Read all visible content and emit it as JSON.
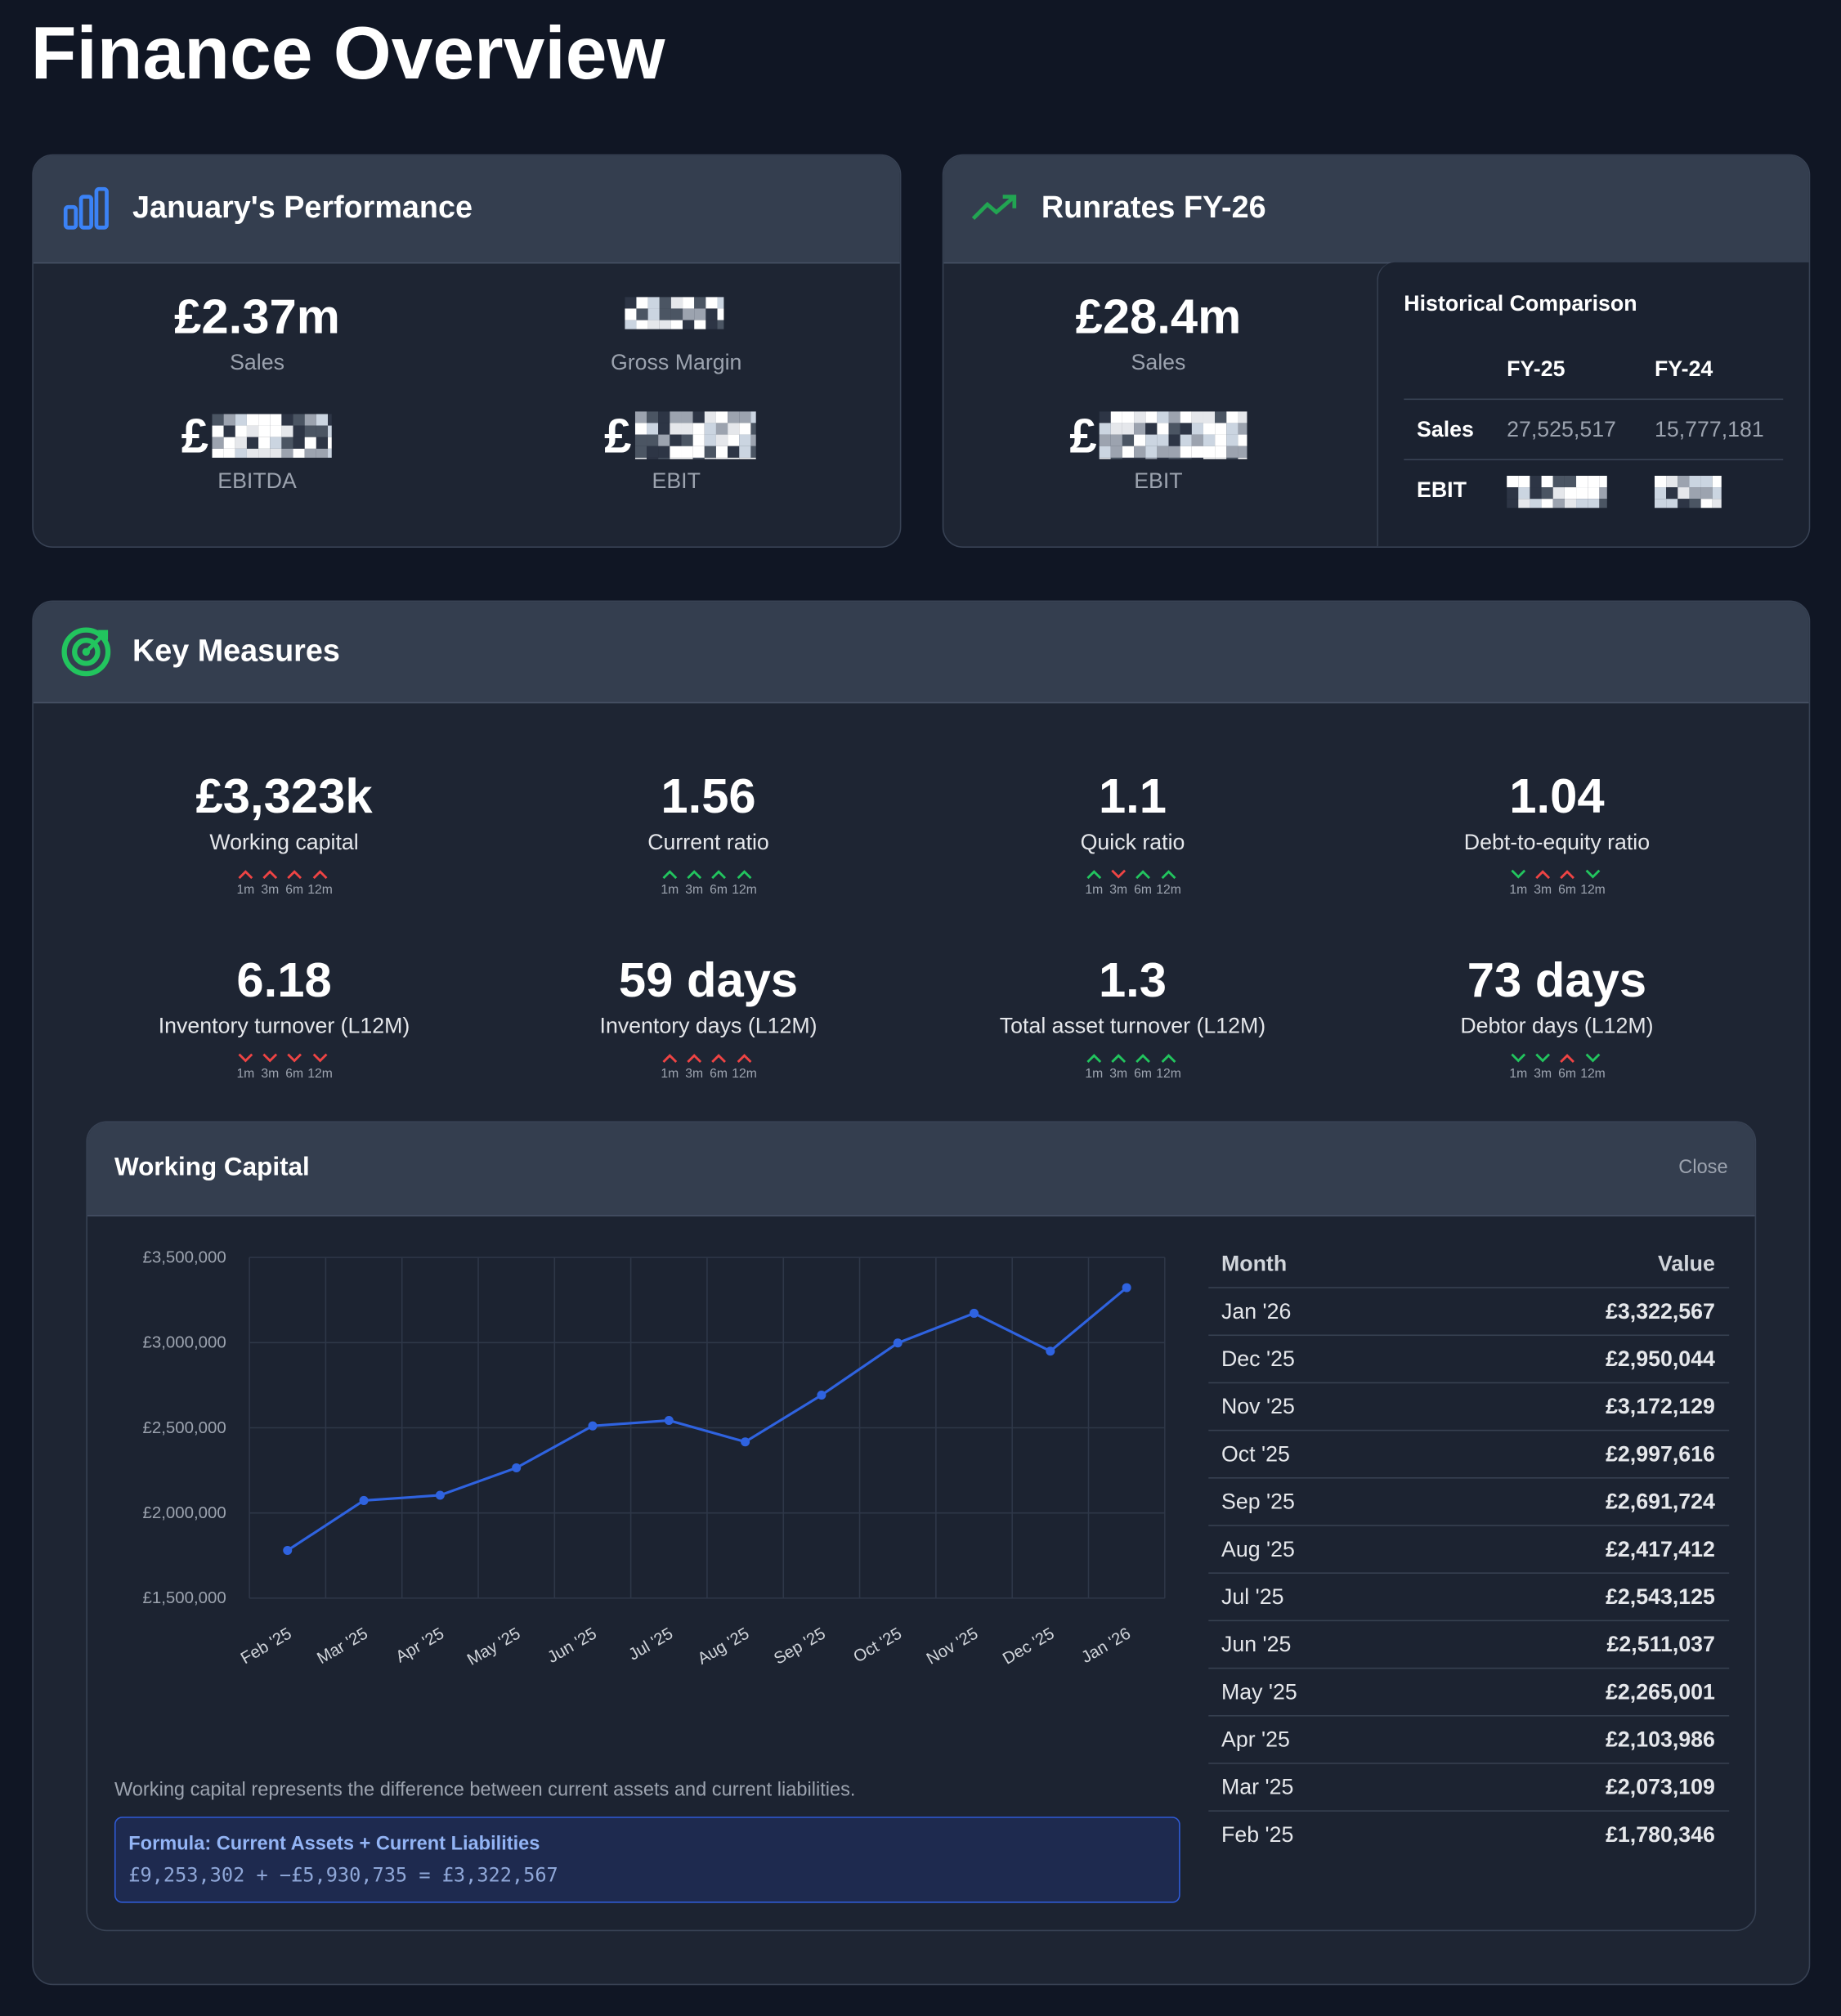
{
  "header": {
    "title": "Finance Overview"
  },
  "performance": {
    "title": "January's Performance",
    "sales": {
      "value": "£2.37m",
      "label": "Sales"
    },
    "gross_margin": {
      "label": "Gross Margin"
    },
    "ebitda": {
      "value": "£",
      "label": "EBITDA"
    },
    "ebit": {
      "value": "£",
      "label": "EBIT"
    }
  },
  "runrates": {
    "title": "Runrates FY-26",
    "sales": {
      "value": "£28.4m",
      "label": "Sales"
    },
    "ebit": {
      "value": "£",
      "label": "EBIT"
    },
    "historical": {
      "title": "Historical Comparison",
      "columns": [
        "FY-25",
        "FY-24"
      ],
      "rows": [
        {
          "label": "Sales",
          "values": [
            "27,525,517",
            "15,777,181"
          ]
        },
        {
          "label": "EBIT"
        }
      ]
    }
  },
  "key_measures": {
    "title": "Key Measures",
    "periods": [
      "1m",
      "3m",
      "6m",
      "12m"
    ],
    "measures": [
      {
        "value": "£3,323k",
        "label": "Working capital",
        "trend": [
          {
            "dir": "up",
            "color": "#ef4444"
          },
          {
            "dir": "up",
            "color": "#ef4444"
          },
          {
            "dir": "up",
            "color": "#ef4444"
          },
          {
            "dir": "up",
            "color": "#ef4444"
          }
        ]
      },
      {
        "value": "1.56",
        "label": "Current ratio",
        "trend": [
          {
            "dir": "up",
            "color": "#22c55e"
          },
          {
            "dir": "up",
            "color": "#22c55e"
          },
          {
            "dir": "up",
            "color": "#22c55e"
          },
          {
            "dir": "up",
            "color": "#22c55e"
          }
        ]
      },
      {
        "value": "1.1",
        "label": "Quick ratio",
        "trend": [
          {
            "dir": "up",
            "color": "#22c55e"
          },
          {
            "dir": "down",
            "color": "#ef4444"
          },
          {
            "dir": "up",
            "color": "#22c55e"
          },
          {
            "dir": "up",
            "color": "#22c55e"
          }
        ]
      },
      {
        "value": "1.04",
        "label": "Debt-to-equity ratio",
        "trend": [
          {
            "dir": "down",
            "color": "#22c55e"
          },
          {
            "dir": "up",
            "color": "#ef4444"
          },
          {
            "dir": "up",
            "color": "#ef4444"
          },
          {
            "dir": "down",
            "color": "#22c55e"
          }
        ]
      },
      {
        "value": "6.18",
        "label": "Inventory turnover (L12M)",
        "trend": [
          {
            "dir": "down",
            "color": "#ef4444"
          },
          {
            "dir": "down",
            "color": "#ef4444"
          },
          {
            "dir": "down",
            "color": "#ef4444"
          },
          {
            "dir": "down",
            "color": "#ef4444"
          }
        ]
      },
      {
        "value": "59 days",
        "label": "Inventory days (L12M)",
        "trend": [
          {
            "dir": "up",
            "color": "#ef4444"
          },
          {
            "dir": "up",
            "color": "#ef4444"
          },
          {
            "dir": "up",
            "color": "#ef4444"
          },
          {
            "dir": "up",
            "color": "#ef4444"
          }
        ]
      },
      {
        "value": "1.3",
        "label": "Total asset turnover (L12M)",
        "trend": [
          {
            "dir": "up",
            "color": "#22c55e"
          },
          {
            "dir": "up",
            "color": "#22c55e"
          },
          {
            "dir": "up",
            "color": "#22c55e"
          },
          {
            "dir": "up",
            "color": "#22c55e"
          }
        ]
      },
      {
        "value": "73 days",
        "label": "Debtor days (L12M)",
        "trend": [
          {
            "dir": "down",
            "color": "#22c55e"
          },
          {
            "dir": "down",
            "color": "#22c55e"
          },
          {
            "dir": "up",
            "color": "#ef4444"
          },
          {
            "dir": "down",
            "color": "#22c55e"
          }
        ]
      }
    ]
  },
  "working_capital": {
    "title": "Working Capital",
    "close": "Close",
    "chart": {
      "type": "line",
      "color": "#2f63e0",
      "grid": true,
      "categories": [
        "Feb '25",
        "Mar '25",
        "Apr '25",
        "May '25",
        "Jun '25",
        "Jul '25",
        "Aug '25",
        "Sep '25",
        "Oct '25",
        "Nov '25",
        "Dec '25",
        "Jan '26"
      ],
      "values": [
        1780346,
        2073109,
        2103986,
        2265001,
        2511037,
        2543125,
        2417412,
        2691724,
        2997616,
        3172129,
        2950044,
        3322567
      ],
      "ylim": [
        1500000,
        3500000
      ],
      "yticks": [
        {
          "value": 1500000,
          "label": "£1,500,000"
        },
        {
          "value": 2000000,
          "label": "£2,000,000"
        },
        {
          "value": 2500000,
          "label": "£2,500,000"
        },
        {
          "value": 3000000,
          "label": "£3,000,000"
        },
        {
          "value": 3500000,
          "label": "£3,500,000"
        }
      ]
    },
    "description": "Working capital represents the difference between current assets and current liabilities.",
    "formula": {
      "title": "Formula: Current Assets + Current Liabilities",
      "expression": "£9,253,302 + −£5,930,735 = £3,322,567"
    },
    "table": {
      "columns": [
        "Month",
        "Value"
      ],
      "rows": [
        [
          "Jan '26",
          "£3,322,567"
        ],
        [
          "Dec '25",
          "£2,950,044"
        ],
        [
          "Nov '25",
          "£3,172,129"
        ],
        [
          "Oct '25",
          "£2,997,616"
        ],
        [
          "Sep '25",
          "£2,691,724"
        ],
        [
          "Aug '25",
          "£2,417,412"
        ],
        [
          "Jul '25",
          "£2,543,125"
        ],
        [
          "Jun '25",
          "£2,511,037"
        ],
        [
          "May '25",
          "£2,265,001"
        ],
        [
          "Apr '25",
          "£2,103,986"
        ],
        [
          "Mar '25",
          "£2,073,109"
        ],
        [
          "Feb '25",
          "£1,780,346"
        ]
      ]
    }
  }
}
